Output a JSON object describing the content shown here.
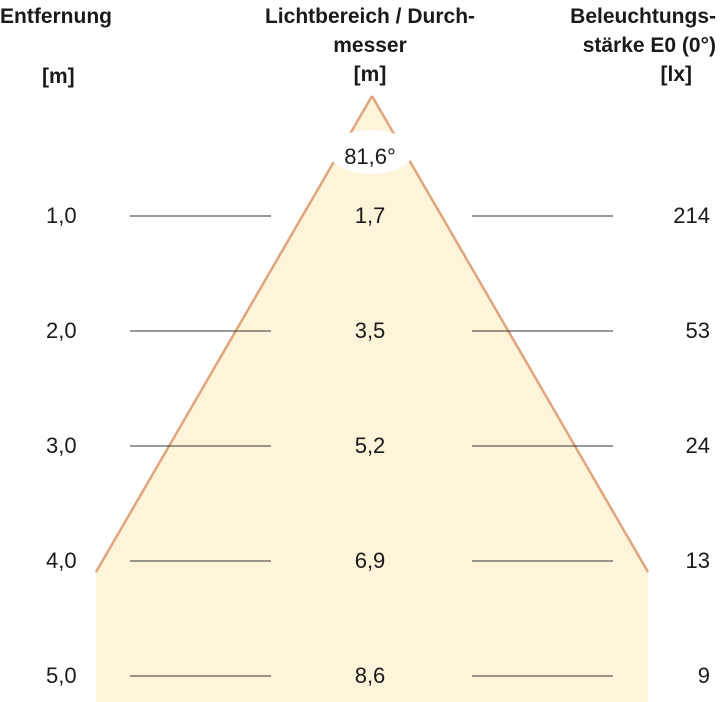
{
  "headers": {
    "distance": {
      "title": "Entfernung",
      "unit": "[m]"
    },
    "diameter": {
      "title_line1": "Lichtbereich / Durch-",
      "title_line2": "messer",
      "unit": "[m]"
    },
    "illuminance": {
      "title_line1": "Beleuchtungs-",
      "title_line2": "stärke E0 (0°)",
      "unit": "[lx]"
    }
  },
  "beam_angle": "81,6°",
  "rows": [
    {
      "distance": "1,0",
      "diameter": "1,7",
      "illuminance": "214"
    },
    {
      "distance": "2,0",
      "diameter": "3,5",
      "illuminance": "53"
    },
    {
      "distance": "3,0",
      "diameter": "5,2",
      "illuminance": "24"
    },
    {
      "distance": "4,0",
      "diameter": "6,9",
      "illuminance": "13"
    },
    {
      "distance": "5,0",
      "diameter": "8,6",
      "illuminance": "9"
    }
  ],
  "colors": {
    "cone_fill": "#fdf4da",
    "cone_edge": "#e0a57c",
    "lines": "#333333",
    "text": "#1a1a1a"
  }
}
